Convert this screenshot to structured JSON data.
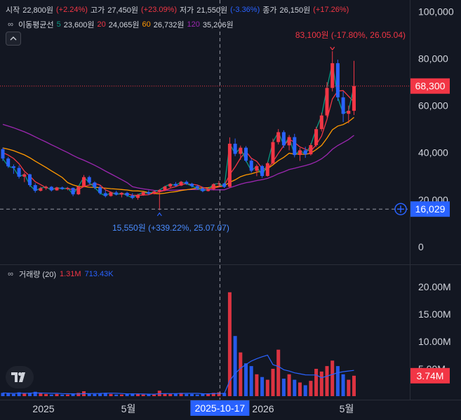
{
  "ohlc_header": {
    "open_label": "시작",
    "open_value": "22,800원",
    "open_change": "(+2.24%)",
    "high_label": "고가",
    "high_value": "27,450원",
    "high_change": "(+23.09%)",
    "low_label": "저가",
    "low_value": "21,550원",
    "low_change": "(-3.36%)",
    "close_label": "종가",
    "close_value": "26,150원",
    "close_change": "(+17.26%)"
  },
  "ma_header": {
    "label": "이동평균선",
    "ma5_period": "5",
    "ma5_value": "23,600원",
    "ma20_period": "20",
    "ma20_value": "24,065원",
    "ma60_period": "60",
    "ma60_value": "26,732원",
    "ma120_period": "120",
    "ma120_value": "35,206원"
  },
  "volume_header": {
    "label": "거래량 (20)",
    "value": "1.31M",
    "ma_value": "713.43K"
  },
  "annotations": {
    "high_marker": "83,100원 (-17.80%, 26.05.04)",
    "low_marker": "15,550원 (+339.22%, 25.07.07)",
    "last_price": "68,300",
    "crosshair_price": "16,029",
    "crosshair_date": "2025-10-17",
    "last_volume": "3.74M"
  },
  "colors": {
    "up": "#f23645",
    "down": "#2962ff",
    "ma5": "#089981",
    "ma20": "#f23645",
    "ma60": "#ff9800",
    "ma120": "#9c27b0",
    "volume_ma": "#2962ff",
    "background": "#131722"
  },
  "chart_data": {
    "type": "candlestick",
    "price_axis": {
      "ticks": [
        "100,000",
        "80,000",
        "60,000",
        "40,000",
        "20,000",
        "0"
      ],
      "range": [
        0,
        100000
      ]
    },
    "volume_axis": {
      "ticks": [
        "20.00M",
        "15.00M",
        "10.00M",
        "5.00M"
      ],
      "range": [
        0,
        20000000
      ]
    },
    "time_axis": {
      "ticks": [
        "2025",
        "5월",
        "2026",
        "5월"
      ]
    },
    "candles_weekly": [
      [
        41500,
        42200,
        36500,
        37500
      ],
      [
        37500,
        38200,
        33500,
        34200
      ],
      [
        34200,
        35000,
        31000,
        33500
      ],
      [
        33500,
        34500,
        29000,
        29800
      ],
      [
        29800,
        31500,
        27500,
        30800
      ],
      [
        30800,
        31000,
        25500,
        26200
      ],
      [
        26200,
        27000,
        23000,
        23800
      ],
      [
        23800,
        25500,
        23500,
        24900
      ],
      [
        24900,
        26000,
        24200,
        25500
      ],
      [
        25500,
        25800,
        23500,
        24000
      ],
      [
        24000,
        25500,
        23800,
        25200
      ],
      [
        25200,
        25600,
        24200,
        24600
      ],
      [
        24600,
        25400,
        24000,
        25000
      ],
      [
        25000,
        25200,
        21500,
        22300
      ],
      [
        22300,
        26000,
        22000,
        25600
      ],
      [
        25600,
        30500,
        25300,
        29600
      ],
      [
        29600,
        30200,
        26500,
        27300
      ],
      [
        27300,
        27800,
        24500,
        25200
      ],
      [
        25200,
        26000,
        22200,
        22800
      ],
      [
        22800,
        24000,
        21000,
        21600
      ],
      [
        21600,
        23500,
        21300,
        23100
      ],
      [
        23100,
        23800,
        21800,
        22200
      ],
      [
        22200,
        23200,
        21000,
        22900
      ],
      [
        22900,
        23400,
        21200,
        21800
      ],
      [
        21800,
        22800,
        20200,
        20800
      ],
      [
        20800,
        22500,
        20000,
        22100
      ],
      [
        22100,
        23500,
        21700,
        23200
      ],
      [
        23200,
        24000,
        22000,
        22600
      ],
      [
        22600,
        23800,
        22300,
        23500
      ],
      [
        23500,
        24500,
        15550,
        24100
      ],
      [
        24100,
        26000,
        23600,
        25600
      ],
      [
        25600,
        27000,
        25000,
        26700
      ],
      [
        26700,
        27500,
        25500,
        26000
      ],
      [
        26000,
        28000,
        25800,
        27600
      ],
      [
        27600,
        28200,
        26300,
        26800
      ],
      [
        26800,
        27200,
        25200,
        25800
      ],
      [
        25800,
        26300,
        24200,
        24800
      ],
      [
        24800,
        25500,
        23200,
        23700
      ],
      [
        23700,
        24800,
        23500,
        24500
      ],
      [
        24500,
        27000,
        24000,
        26600
      ],
      [
        26600,
        28000,
        25500,
        26900
      ],
      [
        26900,
        27200,
        25000,
        25500
      ],
      [
        25500,
        46500,
        25000,
        43800
      ],
      [
        43800,
        46000,
        38500,
        39500
      ],
      [
        39500,
        43000,
        37000,
        42100
      ],
      [
        42100,
        42800,
        36000,
        36600
      ],
      [
        36600,
        37500,
        31500,
        32300
      ],
      [
        32300,
        35000,
        30000,
        34300
      ],
      [
        34300,
        34800,
        29300,
        30100
      ],
      [
        30100,
        36000,
        29800,
        35500
      ],
      [
        35500,
        46000,
        35000,
        44500
      ],
      [
        44500,
        50000,
        43500,
        48700
      ],
      [
        48700,
        49500,
        42000,
        43100
      ],
      [
        43100,
        47500,
        41000,
        46600
      ],
      [
        46600,
        48000,
        38000,
        39000
      ],
      [
        39000,
        42000,
        36500,
        41000
      ],
      [
        41000,
        42500,
        37800,
        39300
      ],
      [
        39300,
        44000,
        38800,
        43200
      ],
      [
        43200,
        51000,
        42500,
        50000
      ],
      [
        50000,
        57000,
        49000,
        55800
      ],
      [
        55800,
        70000,
        55000,
        67500
      ],
      [
        67500,
        83100,
        66000,
        78000
      ],
      [
        78000,
        79500,
        62000,
        63500
      ],
      [
        63500,
        66000,
        53000,
        56500
      ],
      [
        56500,
        60000,
        52500,
        57800
      ],
      [
        57800,
        79000,
        56000,
        68300
      ]
    ],
    "volumes_weekly": [
      0.6,
      0.5,
      0.4,
      0.7,
      0.5,
      0.6,
      0.8,
      0.5,
      0.4,
      0.3,
      0.4,
      0.3,
      0.3,
      0.5,
      0.6,
      0.9,
      0.5,
      0.4,
      0.5,
      0.6,
      0.4,
      0.3,
      0.3,
      0.4,
      0.5,
      0.4,
      0.3,
      0.4,
      0.3,
      1.0,
      0.5,
      0.4,
      0.5,
      0.6,
      0.4,
      0.4,
      0.3,
      0.5,
      0.4,
      0.6,
      0.7,
      0.6,
      19.0,
      11.0,
      8.0,
      6.0,
      5.5,
      4.0,
      3.5,
      3.0,
      5.0,
      8.5,
      3.2,
      4.0,
      3.0,
      2.5,
      2.0,
      2.8,
      5.0,
      4.5,
      5.5,
      6.5,
      5.5,
      4.0,
      3.0,
      3.74
    ]
  }
}
